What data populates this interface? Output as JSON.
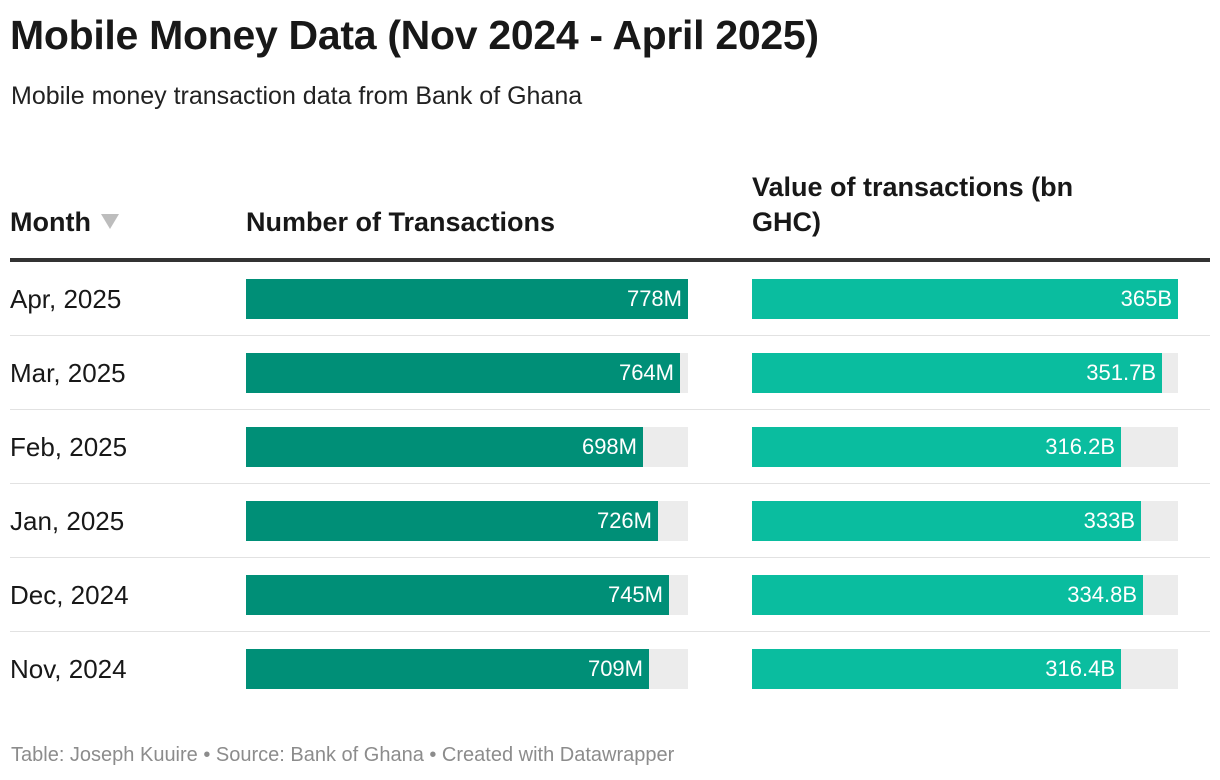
{
  "title": "Mobile Money Data (Nov 2024 - April 2025)",
  "subtitle": "Mobile money transaction data from Bank of Ghana",
  "footer": "Table: Joseph Kuuire • Source: Bank of Ghana • Created with Datawrapper",
  "colors": {
    "number_bar": "#008f77",
    "value_bar": "#0abd9f",
    "track": "#ececec"
  },
  "chart_data": {
    "type": "table",
    "columns": {
      "month": "Month",
      "number": "Number of Transactions",
      "value": "Value of transactions (bn GHC)"
    },
    "sort_icon": "sort-descending-icon",
    "number_max": 778,
    "value_max": 365,
    "rows": [
      {
        "month": "Apr, 2025",
        "number": 778,
        "number_label": "778M",
        "value": 365,
        "value_label": "365B"
      },
      {
        "month": "Mar, 2025",
        "number": 764,
        "number_label": "764M",
        "value": 351.7,
        "value_label": "351.7B"
      },
      {
        "month": "Feb, 2025",
        "number": 698,
        "number_label": "698M",
        "value": 316.2,
        "value_label": "316.2B"
      },
      {
        "month": "Jan, 2025",
        "number": 726,
        "number_label": "726M",
        "value": 333,
        "value_label": "333B"
      },
      {
        "month": "Dec, 2024",
        "number": 745,
        "number_label": "745M",
        "value": 334.8,
        "value_label": "334.8B"
      },
      {
        "month": "Nov, 2024",
        "number": 709,
        "number_label": "709M",
        "value": 316.4,
        "value_label": "316.4B"
      }
    ]
  }
}
